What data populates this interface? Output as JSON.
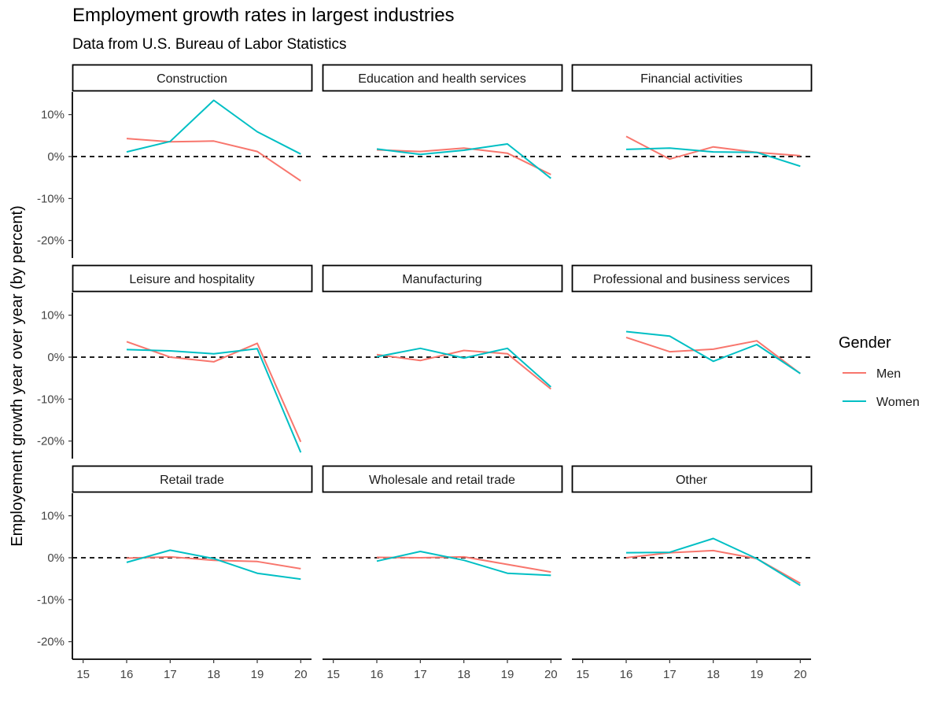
{
  "chart_data": {
    "type": "line",
    "title": "Employment growth rates in largest industries",
    "subtitle": "Data from U.S. Bureau of Labor Statistics",
    "xlabel": "",
    "ylabel": "Employement growth year over year (by percent)",
    "x_ticks": [
      "15",
      "16",
      "17",
      "18",
      "19",
      "20"
    ],
    "y_ticks": [
      "10%",
      "0%",
      "-10%",
      "-20%"
    ],
    "xlim": [
      15,
      20
    ],
    "ylim": [
      -24,
      15
    ],
    "reference_line": 0,
    "legend": {
      "title": "Gender",
      "position": "right",
      "entries": [
        {
          "label": "Men",
          "color": "#F8766D"
        },
        {
          "label": "Women",
          "color": "#00BFC4"
        }
      ]
    },
    "x": [
      16,
      17,
      18,
      19,
      20
    ],
    "facets": [
      {
        "name": "Construction",
        "series": [
          {
            "name": "Men",
            "values": [
              4.3,
              3.5,
              3.7,
              1.2,
              -5.8
            ]
          },
          {
            "name": "Women",
            "values": [
              1.1,
              3.6,
              13.4,
              5.9,
              0.6
            ]
          }
        ]
      },
      {
        "name": "Education and health services",
        "series": [
          {
            "name": "Men",
            "values": [
              1.6,
              1.2,
              2.0,
              0.8,
              -4.3
            ]
          },
          {
            "name": "Women",
            "values": [
              1.8,
              0.5,
              1.5,
              3.0,
              -5.2
            ]
          }
        ]
      },
      {
        "name": "Financial activities",
        "series": [
          {
            "name": "Men",
            "values": [
              4.8,
              -0.6,
              2.3,
              1.0,
              0.2
            ]
          },
          {
            "name": "Women",
            "values": [
              1.7,
              2.0,
              1.1,
              1.0,
              -2.3
            ]
          }
        ]
      },
      {
        "name": "Leisure and hospitality",
        "series": [
          {
            "name": "Men",
            "values": [
              3.7,
              0.0,
              -1.1,
              3.3,
              -20.2
            ]
          },
          {
            "name": "Women",
            "values": [
              1.8,
              1.5,
              0.8,
              2.0,
              -22.7
            ]
          }
        ]
      },
      {
        "name": "Manufacturing",
        "series": [
          {
            "name": "Men",
            "values": [
              0.6,
              -0.8,
              1.6,
              0.8,
              -7.6
            ]
          },
          {
            "name": "Women",
            "values": [
              0.1,
              2.1,
              -0.2,
              2.1,
              -7.1
            ]
          }
        ]
      },
      {
        "name": "Professional and business services",
        "series": [
          {
            "name": "Men",
            "values": [
              4.7,
              1.3,
              1.9,
              3.9,
              -3.9
            ]
          },
          {
            "name": "Women",
            "values": [
              6.1,
              5.0,
              -1.0,
              3.0,
              -3.9
            ]
          }
        ]
      },
      {
        "name": "Retail trade",
        "series": [
          {
            "name": "Men",
            "values": [
              -0.1,
              0.2,
              -0.6,
              -0.9,
              -2.6
            ]
          },
          {
            "name": "Women",
            "values": [
              -1.1,
              1.8,
              -0.2,
              -3.7,
              -5.1
            ]
          }
        ]
      },
      {
        "name": "Wholesale and retail trade",
        "series": [
          {
            "name": "Men",
            "values": [
              0.1,
              0.0,
              0.2,
              -1.6,
              -3.4
            ]
          },
          {
            "name": "Women",
            "values": [
              -0.8,
              1.5,
              -0.6,
              -3.7,
              -4.2
            ]
          }
        ]
      },
      {
        "name": "Other",
        "series": [
          {
            "name": "Men",
            "values": [
              0.0,
              1.2,
              1.7,
              -0.2,
              -6.1
            ]
          },
          {
            "name": "Women",
            "values": [
              1.2,
              1.3,
              4.6,
              -0.2,
              -6.6
            ]
          }
        ]
      }
    ]
  }
}
